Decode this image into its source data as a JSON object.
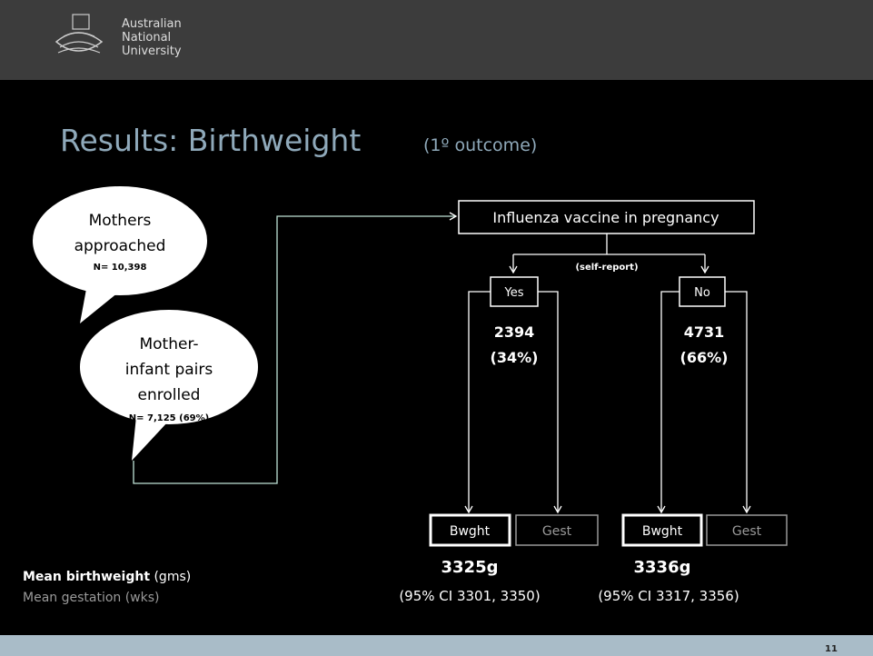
{
  "logo": {
    "lines": [
      "Australian",
      "National",
      "University"
    ]
  },
  "header": {
    "title": "Results: Birthweight",
    "subtitle": "(1º outcome)"
  },
  "bubbles": [
    {
      "lines": [
        "Mothers",
        "approached"
      ],
      "n": "N= 10,398"
    },
    {
      "lines": [
        "Mother-",
        "infant pairs",
        "enrolled"
      ],
      "n": "N= 7,125 (69%)"
    }
  ],
  "root": {
    "label": "Influenza vaccine in pregnancy",
    "edge_label": "(self-report)"
  },
  "groups": [
    {
      "label": "Yes",
      "count": "2394",
      "percent": "(34%)",
      "outcomes": [
        "Bwght",
        "Gest"
      ],
      "mean": "3325g",
      "ci": "(95% CI 3301, 3350)"
    },
    {
      "label": "No",
      "count": "4731",
      "percent": "(66%)",
      "outcomes": [
        "Bwght",
        "Gest"
      ],
      "mean": "3336g",
      "ci": "(95% CI 3317, 3356)"
    }
  ],
  "legend": {
    "birthweight": [
      "Mean birthweight",
      "(gms)"
    ],
    "gestation": "Mean gestation (wks)"
  },
  "footer": {
    "page": "11"
  }
}
